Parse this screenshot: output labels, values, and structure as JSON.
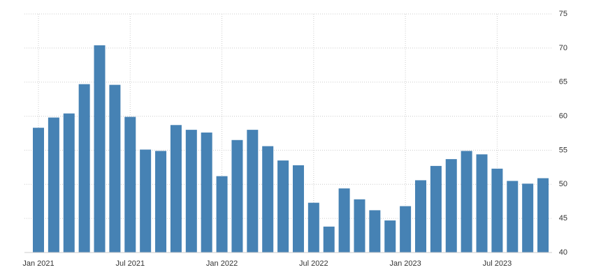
{
  "chart_data": {
    "type": "bar",
    "categories": [
      "Jan 2021",
      null,
      null,
      null,
      null,
      null,
      "Jul 2021",
      null,
      null,
      null,
      null,
      null,
      "Jan 2022",
      null,
      null,
      null,
      null,
      null,
      "Jul 2022",
      null,
      null,
      null,
      null,
      null,
      "Jan 2023",
      null,
      null,
      null,
      null,
      null,
      "Jul 2023",
      null,
      null,
      null
    ],
    "values": [
      58.3,
      59.8,
      60.4,
      64.7,
      70.4,
      64.6,
      59.9,
      55.1,
      54.9,
      58.7,
      58.0,
      57.6,
      51.2,
      56.5,
      58.0,
      55.6,
      53.5,
      52.8,
      47.3,
      43.8,
      49.4,
      47.8,
      46.2,
      44.7,
      46.8,
      50.6,
      52.7,
      53.7,
      54.9,
      54.4,
      52.3,
      50.5,
      50.1,
      50.9
    ],
    "color": "#4682b4",
    "ylim": [
      40,
      75
    ],
    "yticks": [
      40,
      45,
      50,
      55,
      60,
      65,
      70,
      75
    ],
    "grid": true
  }
}
